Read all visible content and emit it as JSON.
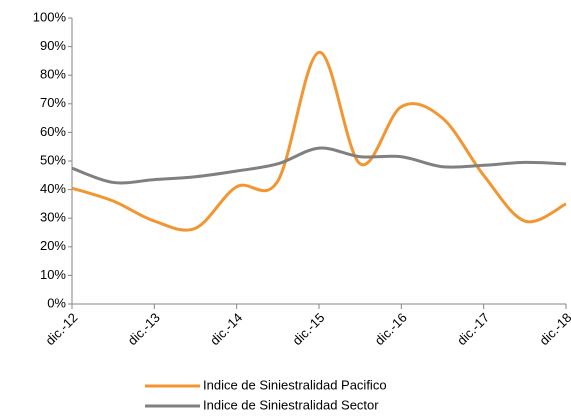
{
  "chart_data": {
    "type": "line",
    "categories": [
      "dic.-12",
      null,
      "dic.-13",
      null,
      "dic.-14",
      null,
      "dic.-15",
      null,
      "dic.-16",
      null,
      "dic.-17",
      null,
      "dic.-18"
    ],
    "series": [
      {
        "name": "Indice de Siniestralidad Pacifico",
        "color": "#f39530",
        "values": [
          40.5,
          36,
          29,
          26.5,
          41,
          43,
          88,
          49,
          69,
          65,
          45,
          29,
          35
        ]
      },
      {
        "name": "Indice de Siniestralidad Sector",
        "color": "#808080",
        "values": [
          47.5,
          42.5,
          43.5,
          44.5,
          46.5,
          49,
          54.5,
          51.5,
          51.5,
          48,
          48.5,
          49.5,
          49
        ]
      }
    ],
    "ylim": [
      0,
      100
    ],
    "yticks": [
      {
        "value": 0,
        "label": "0%"
      },
      {
        "value": 10,
        "label": "10%"
      },
      {
        "value": 20,
        "label": "20%"
      },
      {
        "value": 30,
        "label": "30%"
      },
      {
        "value": 40,
        "label": "40%"
      },
      {
        "value": 50,
        "label": "50%"
      },
      {
        "value": 60,
        "label": "60%"
      },
      {
        "value": 70,
        "label": "70%"
      },
      {
        "value": 80,
        "label": "80%"
      },
      {
        "value": 90,
        "label": "90%"
      },
      {
        "value": 100,
        "label": "100%"
      }
    ],
    "grid": false,
    "legend": "bottom"
  }
}
